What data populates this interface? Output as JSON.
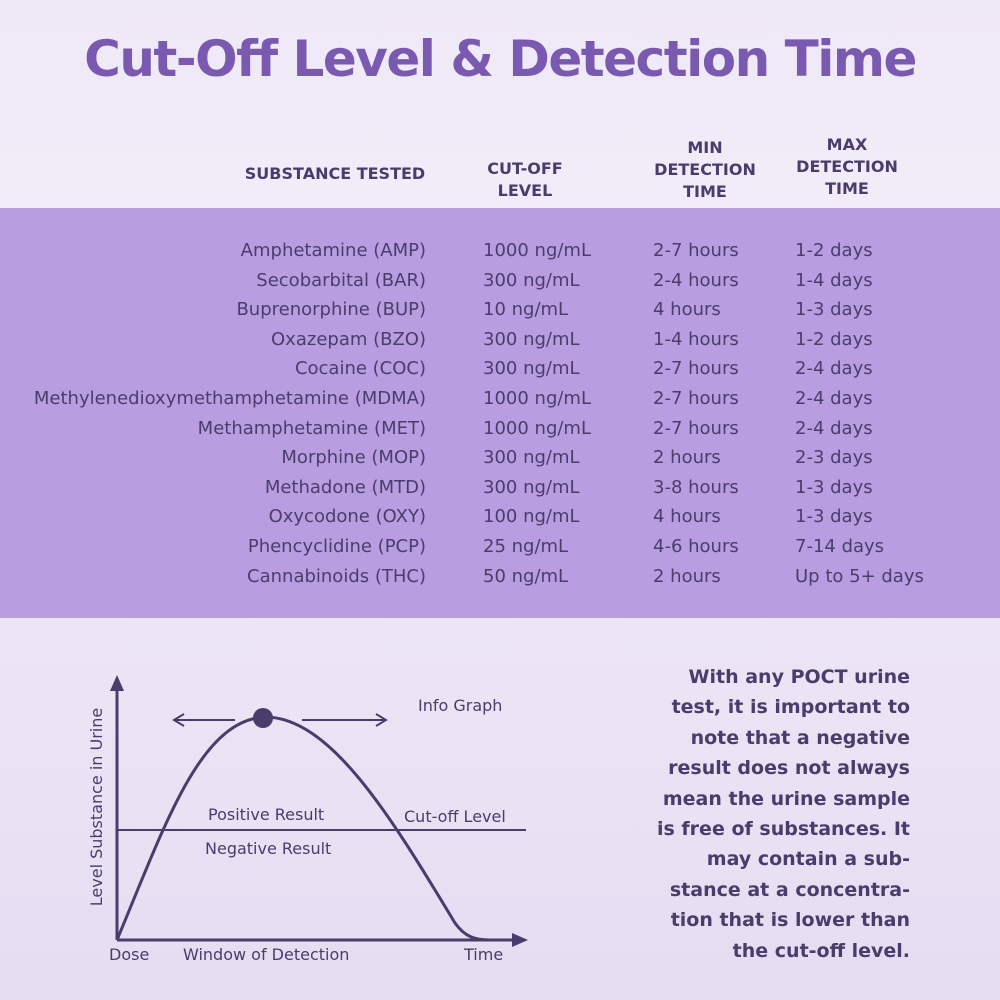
{
  "title": "Cut-Off Level & Detection Time",
  "headers": {
    "substance": "SUBSTANCE TESTED",
    "cutoff": "CUT-OFF\nLEVEL",
    "min": "MIN\nDETECTION\nTIME",
    "max": "MAX\nDETECTION\nTIME"
  },
  "rows": [
    {
      "substance": "Amphetamine (AMP)",
      "cutoff": "1000 ng/mL",
      "min": "2-7 hours",
      "max": "1-2 days"
    },
    {
      "substance": "Secobarbital (BAR)",
      "cutoff": "300 ng/mL",
      "min": "2-4 hours",
      "max": "1-4 days"
    },
    {
      "substance": "Buprenorphine (BUP)",
      "cutoff": "10 ng/mL",
      "min": "4 hours",
      "max": "1-3 days"
    },
    {
      "substance": "Oxazepam (BZO)",
      "cutoff": "300 ng/mL",
      "min": "1-4 hours",
      "max": "1-2 days"
    },
    {
      "substance": "Cocaine (COC)",
      "cutoff": "300 ng/mL",
      "min": "2-7 hours",
      "max": "2-4 days"
    },
    {
      "substance": "Methylenedioxymethamphetamine (MDMA)",
      "cutoff": "1000 ng/mL",
      "min": "2-7 hours",
      "max": "2-4 days"
    },
    {
      "substance": "Methamphetamine (MET)",
      "cutoff": "1000 ng/mL",
      "min": "2-7 hours",
      "max": "2-4 days"
    },
    {
      "substance": "Morphine (MOP)",
      "cutoff": "300 ng/mL",
      "min": "2 hours",
      "max": "2-3 days"
    },
    {
      "substance": "Methadone (MTD)",
      "cutoff": "300 ng/mL",
      "min": "3-8 hours",
      "max": "1-3 days"
    },
    {
      "substance": "Oxycodone (OXY)",
      "cutoff": "100 ng/mL",
      "min": "4 hours",
      "max": "1-3 days"
    },
    {
      "substance": "Phencyclidine (PCP)",
      "cutoff": "25 ng/mL",
      "min": "4-6 hours",
      "max": "7-14 days"
    },
    {
      "substance": "Cannabinoids (THC)",
      "cutoff": "50 ng/mL",
      "min": "2 hours",
      "max": "Up to 5+ days"
    }
  ],
  "graph": {
    "title": "Info Graph",
    "ylabel": "Level Substance in Urine",
    "positive": "Positive Result",
    "negative": "Negative Result",
    "cutoff": "Cut-off Level",
    "dose": "Dose",
    "window": "Window of Detection",
    "time": "Time"
  },
  "note": "With any POCT urine\ntest, it is important to\nnote that a negative\nresult does not always\nmean the urine sample\nis free of substances. It\nmay contain a sub-\nstance at a concentra-\ntion that is lower than\nthe cut-off level.",
  "colors": {
    "title": "#7a5ab0",
    "band": "#b89ee0",
    "text": "#4a3d6b"
  }
}
